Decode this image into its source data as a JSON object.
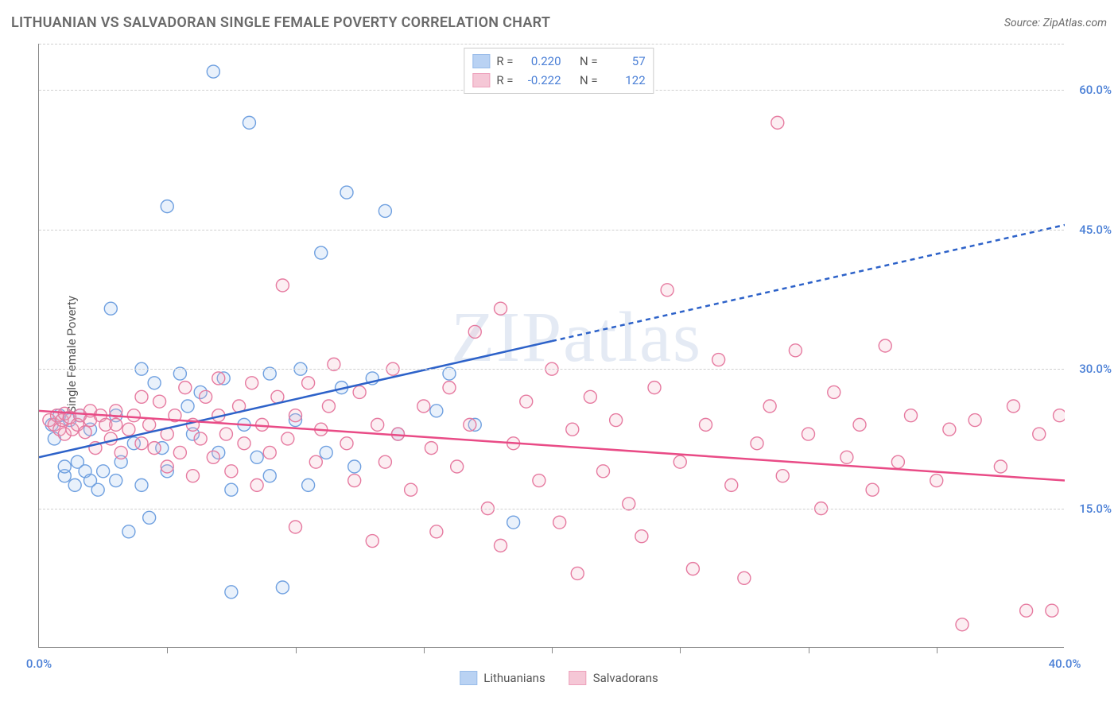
{
  "title": "LITHUANIAN VS SALVADORAN SINGLE FEMALE POVERTY CORRELATION CHART",
  "source_label": "Source: ZipAtlas.com",
  "watermark": "ZIPatlas",
  "y_axis_label": "Single Female Poverty",
  "chart": {
    "type": "scatter",
    "x_min": 0.0,
    "x_max": 40.0,
    "y_min": 0.0,
    "y_max": 65.0,
    "x_tick_step": 5,
    "y_ticks": [
      15.0,
      30.0,
      45.0,
      60.0
    ],
    "x_labels": [
      {
        "v": 0.0,
        "t": "0.0%"
      },
      {
        "v": 40.0,
        "t": "40.0%"
      }
    ],
    "y_labels": [
      {
        "v": 15.0,
        "t": "15.0%"
      },
      {
        "v": 30.0,
        "t": "30.0%"
      },
      {
        "v": 45.0,
        "t": "45.0%"
      },
      {
        "v": 60.0,
        "t": "60.0%"
      }
    ],
    "background_color": "#ffffff",
    "grid_color": "#d0d0d0",
    "marker_radius": 8,
    "marker_fill_opacity": 0.22,
    "marker_stroke_width": 1.4,
    "series": [
      {
        "key": "lithuanians",
        "label": "Lithuanians",
        "color_stroke": "#6fa0e0",
        "color_fill": "#9cc0ee",
        "R": "0.220",
        "N": "57",
        "trend": {
          "color": "#2d62c9",
          "width": 2.5,
          "solid_start": [
            0,
            20.5
          ],
          "solid_end": [
            20,
            33.0
          ],
          "dashed_end": [
            40,
            45.5
          ],
          "dash": "6 5"
        },
        "points": [
          [
            0.5,
            24.0
          ],
          [
            0.6,
            22.5
          ],
          [
            0.8,
            25.0
          ],
          [
            1.0,
            18.5
          ],
          [
            1.0,
            19.5
          ],
          [
            1.2,
            24.5
          ],
          [
            1.4,
            17.5
          ],
          [
            1.5,
            20.0
          ],
          [
            1.6,
            25.0
          ],
          [
            1.8,
            19.0
          ],
          [
            2.0,
            18.0
          ],
          [
            2.0,
            23.5
          ],
          [
            2.3,
            17.0
          ],
          [
            2.5,
            19.0
          ],
          [
            2.8,
            36.5
          ],
          [
            3.0,
            18.0
          ],
          [
            3.0,
            25.0
          ],
          [
            3.2,
            20.0
          ],
          [
            3.5,
            12.5
          ],
          [
            3.7,
            22.0
          ],
          [
            4.0,
            30.0
          ],
          [
            4.0,
            17.5
          ],
          [
            4.3,
            14.0
          ],
          [
            4.5,
            28.5
          ],
          [
            4.8,
            21.5
          ],
          [
            5.0,
            19.0
          ],
          [
            5.0,
            47.5
          ],
          [
            5.5,
            29.5
          ],
          [
            5.8,
            26.0
          ],
          [
            6.0,
            23.0
          ],
          [
            6.3,
            27.5
          ],
          [
            6.8,
            62.0
          ],
          [
            7.0,
            21.0
          ],
          [
            7.2,
            29.0
          ],
          [
            7.5,
            17.0
          ],
          [
            7.5,
            6.0
          ],
          [
            8.0,
            24.0
          ],
          [
            8.2,
            56.5
          ],
          [
            8.5,
            20.5
          ],
          [
            9.0,
            29.5
          ],
          [
            9.0,
            18.5
          ],
          [
            9.5,
            6.5
          ],
          [
            10.0,
            24.5
          ],
          [
            10.2,
            30.0
          ],
          [
            10.5,
            17.5
          ],
          [
            11.0,
            42.5
          ],
          [
            11.2,
            21.0
          ],
          [
            11.8,
            28.0
          ],
          [
            12.0,
            49.0
          ],
          [
            12.3,
            19.5
          ],
          [
            13.0,
            29.0
          ],
          [
            13.5,
            47.0
          ],
          [
            14.0,
            23.0
          ],
          [
            15.5,
            25.5
          ],
          [
            16.0,
            29.5
          ],
          [
            17.0,
            24.0
          ],
          [
            18.5,
            13.5
          ]
        ]
      },
      {
        "key": "salvadorans",
        "label": "Salvadorans",
        "color_stroke": "#e67aa0",
        "color_fill": "#f2b0c6",
        "R": "-0.222",
        "N": "122",
        "trend": {
          "color": "#e94b86",
          "width": 2.5,
          "solid_start": [
            0,
            25.5
          ],
          "solid_end": [
            40,
            18.0
          ]
        },
        "points": [
          [
            0.4,
            24.5
          ],
          [
            0.6,
            24.0
          ],
          [
            0.7,
            25.0
          ],
          [
            0.8,
            23.5
          ],
          [
            0.9,
            24.5
          ],
          [
            1.0,
            25.2
          ],
          [
            1.0,
            23.0
          ],
          [
            1.2,
            24.8
          ],
          [
            1.3,
            23.5
          ],
          [
            1.5,
            24.0
          ],
          [
            1.6,
            25.0
          ],
          [
            1.8,
            23.2
          ],
          [
            2.0,
            24.5
          ],
          [
            2.0,
            25.5
          ],
          [
            2.2,
            21.5
          ],
          [
            2.4,
            25.0
          ],
          [
            2.6,
            24.0
          ],
          [
            2.8,
            22.5
          ],
          [
            3.0,
            24.0
          ],
          [
            3.0,
            25.5
          ],
          [
            3.2,
            21.0
          ],
          [
            3.5,
            23.5
          ],
          [
            3.7,
            25.0
          ],
          [
            4.0,
            22.0
          ],
          [
            4.0,
            27.0
          ],
          [
            4.3,
            24.0
          ],
          [
            4.5,
            21.5
          ],
          [
            4.7,
            26.5
          ],
          [
            5.0,
            23.0
          ],
          [
            5.0,
            19.5
          ],
          [
            5.3,
            25.0
          ],
          [
            5.5,
            21.0
          ],
          [
            5.7,
            28.0
          ],
          [
            6.0,
            24.0
          ],
          [
            6.0,
            18.5
          ],
          [
            6.3,
            22.5
          ],
          [
            6.5,
            27.0
          ],
          [
            6.8,
            20.5
          ],
          [
            7.0,
            25.0
          ],
          [
            7.0,
            29.0
          ],
          [
            7.3,
            23.0
          ],
          [
            7.5,
            19.0
          ],
          [
            7.8,
            26.0
          ],
          [
            8.0,
            22.0
          ],
          [
            8.3,
            28.5
          ],
          [
            8.5,
            17.5
          ],
          [
            8.7,
            24.0
          ],
          [
            9.0,
            21.0
          ],
          [
            9.3,
            27.0
          ],
          [
            9.5,
            39.0
          ],
          [
            9.7,
            22.5
          ],
          [
            10.0,
            25.0
          ],
          [
            10.0,
            13.0
          ],
          [
            10.5,
            28.5
          ],
          [
            10.8,
            20.0
          ],
          [
            11.0,
            23.5
          ],
          [
            11.3,
            26.0
          ],
          [
            11.5,
            30.5
          ],
          [
            12.0,
            22.0
          ],
          [
            12.3,
            18.0
          ],
          [
            12.5,
            27.5
          ],
          [
            13.0,
            11.5
          ],
          [
            13.2,
            24.0
          ],
          [
            13.5,
            20.0
          ],
          [
            13.8,
            30.0
          ],
          [
            14.0,
            23.0
          ],
          [
            14.5,
            17.0
          ],
          [
            15.0,
            26.0
          ],
          [
            15.3,
            21.5
          ],
          [
            15.5,
            12.5
          ],
          [
            16.0,
            28.0
          ],
          [
            16.3,
            19.5
          ],
          [
            16.8,
            24.0
          ],
          [
            17.0,
            34.0
          ],
          [
            17.5,
            15.0
          ],
          [
            18.0,
            36.5
          ],
          [
            18.0,
            11.0
          ],
          [
            18.5,
            22.0
          ],
          [
            19.0,
            26.5
          ],
          [
            19.5,
            18.0
          ],
          [
            20.0,
            30.0
          ],
          [
            20.3,
            13.5
          ],
          [
            20.8,
            23.5
          ],
          [
            21.0,
            8.0
          ],
          [
            21.5,
            27.0
          ],
          [
            22.0,
            19.0
          ],
          [
            22.5,
            24.5
          ],
          [
            23.0,
            15.5
          ],
          [
            23.5,
            12.0
          ],
          [
            24.0,
            28.0
          ],
          [
            24.5,
            38.5
          ],
          [
            25.0,
            20.0
          ],
          [
            25.5,
            8.5
          ],
          [
            26.0,
            24.0
          ],
          [
            26.5,
            31.0
          ],
          [
            27.0,
            17.5
          ],
          [
            27.5,
            7.5
          ],
          [
            28.0,
            22.0
          ],
          [
            28.5,
            26.0
          ],
          [
            28.8,
            56.5
          ],
          [
            29.0,
            18.5
          ],
          [
            29.5,
            32.0
          ],
          [
            30.0,
            23.0
          ],
          [
            30.5,
            15.0
          ],
          [
            31.0,
            27.5
          ],
          [
            31.5,
            20.5
          ],
          [
            32.0,
            24.0
          ],
          [
            32.5,
            17.0
          ],
          [
            33.0,
            32.5
          ],
          [
            33.5,
            20.0
          ],
          [
            34.0,
            25.0
          ],
          [
            35.0,
            18.0
          ],
          [
            35.5,
            23.5
          ],
          [
            36.0,
            2.5
          ],
          [
            36.5,
            24.5
          ],
          [
            37.5,
            19.5
          ],
          [
            38.0,
            26.0
          ],
          [
            38.5,
            4.0
          ],
          [
            39.0,
            23.0
          ],
          [
            39.5,
            4.0
          ],
          [
            39.8,
            25.0
          ]
        ]
      }
    ]
  },
  "legend_top": {
    "R_label": "R =",
    "N_label": "N ="
  }
}
